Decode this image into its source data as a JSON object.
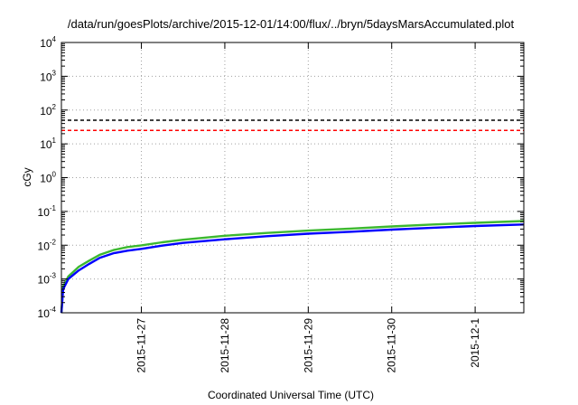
{
  "chart_data": {
    "type": "line",
    "title": "/data/run/goesPlots/archive/2015-12-01/14:00/flux/../bryn/5daysMarsAccumulated.plot",
    "xlabel": "Coordinated Universal Time (UTC)",
    "ylabel": "cGy",
    "yscale": "log",
    "ylim": [
      0.0001,
      10000
    ],
    "xlim": [
      "2015-11-26T01:00",
      "2015-12-01T14:00"
    ],
    "grid": true,
    "x_ticks": [
      "2015-11-27",
      "2015-11-28",
      "2015-11-29",
      "2015-11-30",
      "2015-12-1"
    ],
    "y_ticks": [
      {
        "base": "10",
        "exp": "-4"
      },
      {
        "base": "10",
        "exp": "-3"
      },
      {
        "base": "10",
        "exp": "-2"
      },
      {
        "base": "10",
        "exp": "-1"
      },
      {
        "base": "10",
        "exp": "0"
      },
      {
        "base": "10",
        "exp": "1"
      },
      {
        "base": "10",
        "exp": "2"
      },
      {
        "base": "10",
        "exp": "3"
      },
      {
        "base": "10",
        "exp": "4"
      }
    ],
    "reference_lines": [
      {
        "y": 50,
        "color": "#000000",
        "style": "dashed"
      },
      {
        "y": 25,
        "color": "#ff0000",
        "style": "dashed"
      }
    ],
    "series": [
      {
        "color": "#3cb830",
        "x": [
          "2015-11-26T01:00",
          "2015-11-26T01:30",
          "2015-11-26T03:00",
          "2015-11-26T06:00",
          "2015-11-26T09:00",
          "2015-11-26T12:00",
          "2015-11-26T16:00",
          "2015-11-26T20:00",
          "2015-11-27T00:00",
          "2015-11-27T06:00",
          "2015-11-27T12:00",
          "2015-11-28T00:00",
          "2015-11-28T12:00",
          "2015-11-29T00:00",
          "2015-11-29T12:00",
          "2015-11-30T00:00",
          "2015-11-30T12:00",
          "2015-12-01T00:00",
          "2015-12-01T14:00"
        ],
        "y": [
          0.0001,
          0.0006,
          0.0012,
          0.0023,
          0.0035,
          0.0052,
          0.0072,
          0.0088,
          0.0099,
          0.0122,
          0.0145,
          0.019,
          0.023,
          0.027,
          0.031,
          0.036,
          0.041,
          0.046,
          0.052
        ]
      },
      {
        "color": "#0000ff",
        "x": [
          "2015-11-26T01:00",
          "2015-11-26T01:30",
          "2015-11-26T03:00",
          "2015-11-26T06:00",
          "2015-11-26T09:00",
          "2015-11-26T12:00",
          "2015-11-26T16:00",
          "2015-11-26T20:00",
          "2015-11-27T00:00",
          "2015-11-27T06:00",
          "2015-11-27T12:00",
          "2015-11-28T00:00",
          "2015-11-28T12:00",
          "2015-11-29T00:00",
          "2015-11-29T12:00",
          "2015-11-30T00:00",
          "2015-11-30T12:00",
          "2015-12-01T00:00",
          "2015-12-01T14:00"
        ],
        "y": [
          0.0001,
          0.0005,
          0.001,
          0.0018,
          0.0028,
          0.0042,
          0.0058,
          0.0069,
          0.0078,
          0.0097,
          0.0117,
          0.015,
          0.0185,
          0.022,
          0.025,
          0.029,
          0.033,
          0.037,
          0.041
        ]
      }
    ]
  }
}
